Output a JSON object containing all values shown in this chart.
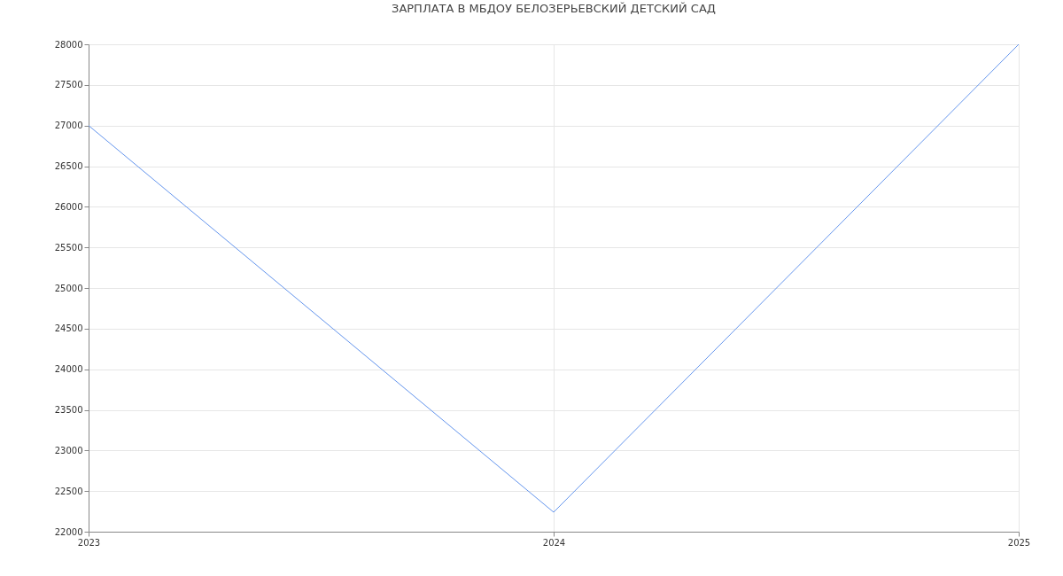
{
  "chart_data": {
    "type": "line",
    "title": "ЗАРПЛАТА В МБДОУ БЕЛОЗЕРЬЕВСКИЙ ДЕТСКИЙ САД",
    "x": [
      2023,
      2024,
      2025
    ],
    "series": [
      {
        "color": "#6495ed",
        "values": [
          27000,
          22240,
          28000
        ]
      }
    ],
    "xlim": [
      2023,
      2025
    ],
    "xticks": [
      2023,
      2024,
      2025
    ],
    "ylim": [
      22000,
      28000
    ],
    "yticks": [
      22000,
      22500,
      23000,
      23500,
      24000,
      24500,
      25000,
      25500,
      26000,
      26500,
      27000,
      27500,
      28000
    ],
    "grid": true,
    "marker": "none",
    "line_style": "solid"
  }
}
